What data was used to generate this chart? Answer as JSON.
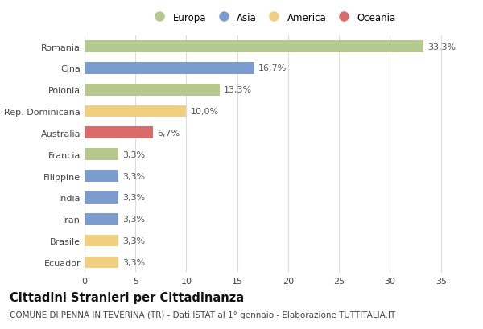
{
  "categories": [
    "Romania",
    "Cina",
    "Polonia",
    "Rep. Dominicana",
    "Australia",
    "Francia",
    "Filippine",
    "India",
    "Iran",
    "Brasile",
    "Ecuador"
  ],
  "values": [
    33.3,
    16.7,
    13.3,
    10.0,
    6.7,
    3.3,
    3.3,
    3.3,
    3.3,
    3.3,
    3.3
  ],
  "labels": [
    "33,3%",
    "16,7%",
    "13,3%",
    "10,0%",
    "6,7%",
    "3,3%",
    "3,3%",
    "3,3%",
    "3,3%",
    "3,3%",
    "3,3%"
  ],
  "continents": [
    "Europa",
    "Asia",
    "Europa",
    "America",
    "Oceania",
    "Europa",
    "Asia",
    "Asia",
    "Asia",
    "America",
    "America"
  ],
  "colors": {
    "Europa": "#b5c98e",
    "Asia": "#7b9ccc",
    "America": "#f0d080",
    "Oceania": "#d96b6b"
  },
  "legend_order": [
    "Europa",
    "Asia",
    "America",
    "Oceania"
  ],
  "title": "Cittadini Stranieri per Cittadinanza",
  "subtitle": "COMUNE DI PENNA IN TEVERINA (TR) - Dati ISTAT al 1° gennaio - Elaborazione TUTTITALIA.IT",
  "xlim": [
    0,
    37
  ],
  "xticks": [
    0,
    5,
    10,
    15,
    20,
    25,
    30,
    35
  ],
  "background_color": "#ffffff",
  "grid_color": "#dddddd",
  "bar_height": 0.55,
  "label_fontsize": 8,
  "tick_fontsize": 8,
  "title_fontsize": 10.5,
  "subtitle_fontsize": 7.5
}
